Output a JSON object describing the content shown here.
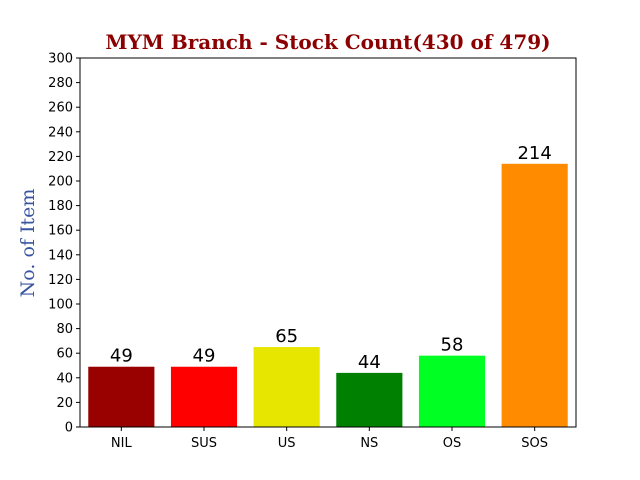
{
  "chart_data": {
    "type": "bar",
    "title": "MYM Branch - Stock Count(430 of 479)",
    "xlabel": "",
    "ylabel": "No. of Item",
    "categories": [
      "NIL",
      "SUS",
      "US",
      "NS",
      "OS",
      "SOS"
    ],
    "values": [
      49,
      49,
      65,
      44,
      58,
      214
    ],
    "bar_colors": [
      "#990000",
      "#ff0000",
      "#e6e600",
      "#008000",
      "#00ff22",
      "#ff8c00"
    ],
    "ylim": [
      0,
      300
    ],
    "yticks": [
      0,
      20,
      40,
      60,
      80,
      100,
      120,
      140,
      160,
      180,
      200,
      220,
      240,
      260,
      280,
      300
    ],
    "grid": false,
    "data_labels": true,
    "title_color": "#8b0000",
    "ylabel_color": "#3a55a0"
  }
}
